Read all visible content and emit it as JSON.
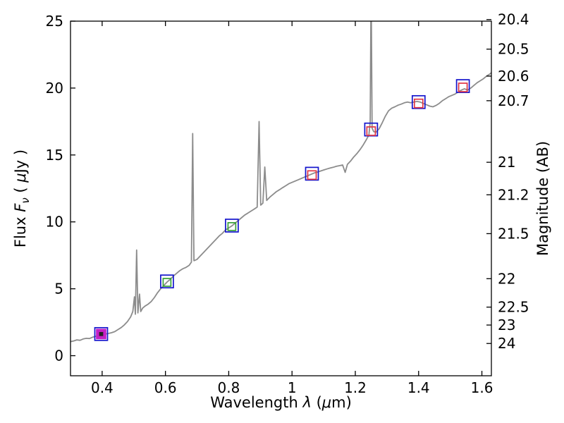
{
  "chart_data": {
    "type": "line",
    "title": "",
    "xlabel": "Wavelength λ (μm)",
    "ylabel_left": "Flux Fν ( μJy )",
    "ylabel_right": "Magnitude (AB)",
    "xlabel_parts": [
      {
        "t": "Wavelength  ",
        "s": 21
      },
      {
        "t": "λ",
        "s": 21,
        "i": 1
      },
      {
        "t": " (",
        "s": 21
      },
      {
        "t": "μ",
        "s": 21,
        "i": 1
      },
      {
        "t": "m)",
        "s": 21
      }
    ],
    "ylabel_left_parts": [
      {
        "t": "Flux  ",
        "s": 21
      },
      {
        "t": "F",
        "s": 21,
        "i": 1
      },
      {
        "t": "ν",
        "s": 15,
        "i": 1,
        "dy": 5
      },
      {
        "t": "  ( ",
        "s": 21,
        "dy": -5
      },
      {
        "t": "μ",
        "s": 21,
        "i": 1
      },
      {
        "t": "Jy )",
        "s": 21
      }
    ],
    "ylabel_right_parts": [
      {
        "t": "Magnitude (AB)",
        "s": 21
      }
    ],
    "xlim": [
      0.3,
      1.63
    ],
    "ylim": [
      -1.5,
      25
    ],
    "x_ticks": [
      0.4,
      0.6,
      0.8,
      1,
      1.2,
      1.4,
      1.6
    ],
    "y_ticks_left": [
      0,
      5,
      10,
      15,
      20,
      25
    ],
    "y_ticks_right": [
      20.4,
      20.5,
      20.6,
      20.7,
      21,
      21.2,
      21.5,
      22,
      22.5,
      23,
      24
    ],
    "mag_zeropoint": 23.9,
    "grid": false,
    "legend": "none",
    "colors": {
      "spectrum": "#8c8c8c",
      "frame": "#000000",
      "blue_marker": "#1414cc",
      "red_marker": "#e03545",
      "green_marker": "#35a035",
      "magenta_marker": "#c520c5",
      "dark_marker": "#222222"
    },
    "spectrum": {
      "x": [
        0.3,
        0.31,
        0.32,
        0.33,
        0.34,
        0.35,
        0.36,
        0.37,
        0.38,
        0.39,
        0.4,
        0.41,
        0.42,
        0.43,
        0.44,
        0.45,
        0.46,
        0.47,
        0.48,
        0.49,
        0.497,
        0.502,
        0.505,
        0.509,
        0.513,
        0.518,
        0.522,
        0.528,
        0.535,
        0.545,
        0.555,
        0.565,
        0.575,
        0.585,
        0.595,
        0.605,
        0.615,
        0.625,
        0.635,
        0.645,
        0.655,
        0.665,
        0.675,
        0.682,
        0.686,
        0.69,
        0.7,
        0.71,
        0.72,
        0.73,
        0.74,
        0.75,
        0.76,
        0.77,
        0.78,
        0.79,
        0.8,
        0.81,
        0.82,
        0.83,
        0.84,
        0.85,
        0.86,
        0.87,
        0.88,
        0.89,
        0.896,
        0.901,
        0.908,
        0.914,
        0.92,
        0.93,
        0.94,
        0.95,
        0.96,
        0.97,
        0.98,
        0.99,
        1.0,
        1.01,
        1.02,
        1.03,
        1.04,
        1.05,
        1.06,
        1.07,
        1.08,
        1.09,
        1.1,
        1.11,
        1.12,
        1.13,
        1.14,
        1.15,
        1.16,
        1.168,
        1.175,
        1.185,
        1.195,
        1.205,
        1.215,
        1.225,
        1.235,
        1.243,
        1.247,
        1.25,
        1.253,
        1.258,
        1.265,
        1.275,
        1.285,
        1.295,
        1.305,
        1.315,
        1.325,
        1.335,
        1.345,
        1.355,
        1.365,
        1.375,
        1.385,
        1.395,
        1.405,
        1.415,
        1.425,
        1.435,
        1.445,
        1.455,
        1.465,
        1.475,
        1.485,
        1.495,
        1.505,
        1.515,
        1.525,
        1.535,
        1.545,
        1.555,
        1.565,
        1.575,
        1.585,
        1.595,
        1.605,
        1.615,
        1.625,
        1.63
      ],
      "y": [
        1.05,
        1.1,
        1.18,
        1.15,
        1.25,
        1.3,
        1.28,
        1.38,
        1.45,
        1.52,
        1.58,
        1.62,
        1.66,
        1.72,
        1.8,
        1.95,
        2.1,
        2.3,
        2.55,
        2.9,
        3.3,
        4.4,
        3.1,
        7.9,
        3.2,
        4.6,
        3.3,
        3.55,
        3.7,
        3.85,
        4.05,
        4.35,
        4.7,
        5.0,
        5.25,
        5.5,
        5.7,
        5.95,
        6.15,
        6.35,
        6.5,
        6.6,
        6.75,
        7.0,
        16.6,
        7.1,
        7.2,
        7.45,
        7.7,
        7.95,
        8.2,
        8.45,
        8.7,
        8.95,
        9.15,
        9.4,
        9.55,
        9.7,
        9.9,
        10.1,
        10.3,
        10.5,
        10.65,
        10.8,
        10.95,
        11.1,
        17.5,
        11.25,
        11.4,
        14.1,
        11.6,
        11.85,
        12.05,
        12.25,
        12.4,
        12.55,
        12.7,
        12.85,
        12.95,
        13.05,
        13.15,
        13.25,
        13.35,
        13.45,
        13.55,
        13.65,
        13.72,
        13.8,
        13.88,
        13.95,
        14.02,
        14.08,
        14.15,
        14.2,
        14.25,
        13.7,
        14.3,
        14.55,
        14.85,
        15.1,
        15.4,
        15.75,
        16.15,
        16.5,
        17.5,
        28.0,
        17.0,
        16.75,
        16.7,
        16.95,
        17.4,
        17.9,
        18.3,
        18.5,
        18.6,
        18.72,
        18.8,
        18.9,
        18.95,
        18.9,
        18.95,
        19.0,
        18.95,
        18.85,
        18.75,
        18.65,
        18.6,
        18.7,
        18.85,
        19.05,
        19.2,
        19.35,
        19.45,
        19.55,
        19.7,
        19.85,
        19.95,
        19.85,
        20.0,
        20.2,
        20.4,
        20.55,
        20.7,
        20.9,
        21.05,
        21.15
      ]
    },
    "photometry": [
      {
        "x": 0.397,
        "y": 1.62,
        "color": "#1414cc",
        "filled": false,
        "size": 18
      },
      {
        "x": 0.397,
        "y": 1.62,
        "color": "#c520c5",
        "filled": true,
        "size": 13
      },
      {
        "x": 0.397,
        "y": 1.62,
        "color": "#222222",
        "filled": true,
        "size": 4
      },
      {
        "x": 0.605,
        "y": 5.55,
        "color": "#1414cc",
        "filled": false,
        "size": 18
      },
      {
        "x": 0.605,
        "y": 5.48,
        "color": "#35a035",
        "filled": false,
        "size": 11
      },
      {
        "x": 0.81,
        "y": 9.72,
        "color": "#1414cc",
        "filled": false,
        "size": 18
      },
      {
        "x": 0.81,
        "y": 9.65,
        "color": "#35a035",
        "filled": false,
        "size": 11
      },
      {
        "x": 1.063,
        "y": 13.6,
        "color": "#1414cc",
        "filled": false,
        "size": 18
      },
      {
        "x": 1.063,
        "y": 13.5,
        "color": "#e03545",
        "filled": false,
        "size": 12
      },
      {
        "x": 1.25,
        "y": 16.9,
        "color": "#1414cc",
        "filled": false,
        "size": 18
      },
      {
        "x": 1.25,
        "y": 16.78,
        "color": "#e03545",
        "filled": false,
        "size": 12
      },
      {
        "x": 1.4,
        "y": 18.95,
        "color": "#1414cc",
        "filled": false,
        "size": 18
      },
      {
        "x": 1.4,
        "y": 18.85,
        "color": "#e03545",
        "filled": false,
        "size": 12
      },
      {
        "x": 1.54,
        "y": 20.15,
        "color": "#1414cc",
        "filled": false,
        "size": 18
      },
      {
        "x": 1.54,
        "y": 20.05,
        "color": "#e03545",
        "filled": false,
        "size": 12
      }
    ]
  }
}
